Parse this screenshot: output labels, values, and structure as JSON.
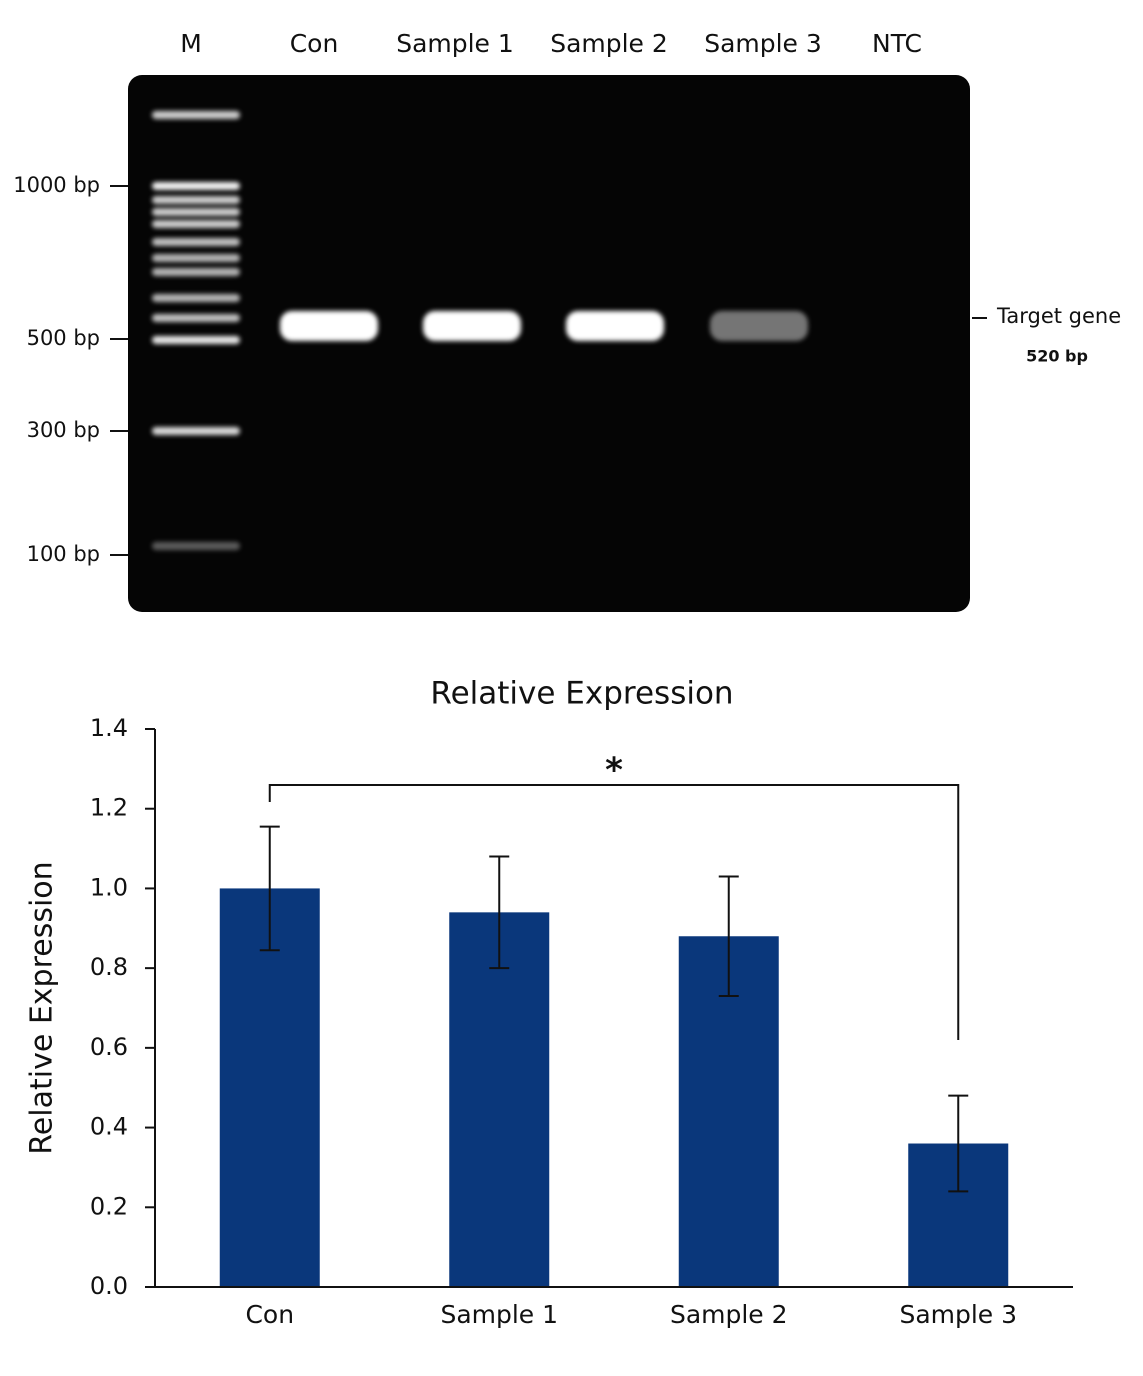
{
  "gel": {
    "lanes": [
      "M",
      "Con",
      "Sample 1",
      "Sample 2",
      "Sample 3",
      "NTC"
    ],
    "markers": [
      "1000 bp",
      "500 bp",
      "300 bp",
      "100 bp"
    ],
    "target": {
      "label": "Target gene",
      "size": "520 bp"
    }
  },
  "chart_data": {
    "type": "bar",
    "title": "Relative Expression",
    "y_label": "Relative Expression",
    "categories": [
      "Con",
      "Sample 1",
      "Sample 2",
      "Sample 3"
    ],
    "series": [
      {
        "name": "Relative Expression",
        "color": "#0a377b",
        "values": [
          1.0,
          0.94,
          0.88,
          0.36
        ],
        "errors": [
          0.155,
          0.14,
          0.15,
          0.12
        ]
      }
    ],
    "ylim": [
      0,
      1.4
    ],
    "yticks": [
      {
        "value": 0,
        "label": "0.0"
      },
      0.2,
      0.4,
      0.6,
      0.8,
      {
        "value": 1,
        "label": "1.0"
      },
      1.2,
      1.4
    ],
    "annotation": "*"
  }
}
